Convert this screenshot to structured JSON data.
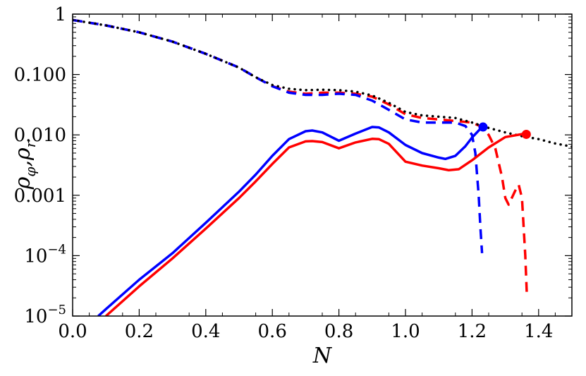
{
  "chart_data": {
    "type": "line",
    "xlabel": "N",
    "ylabel": "ρφ,ρr",
    "xlim": [
      0.0,
      1.5
    ],
    "ylim": [
      1e-05,
      1
    ],
    "yscale": "log",
    "grid": false,
    "legend": "none",
    "x_ticks": [
      0.0,
      0.2,
      0.4,
      0.6,
      0.8,
      1.0,
      1.2,
      1.4
    ],
    "x_tick_labels": [
      "0.0",
      "0.2",
      "0.4",
      "0.6",
      "0.8",
      "1.0",
      "1.2",
      "1.4"
    ],
    "y_ticks": [
      1e-05,
      0.0001,
      0.001,
      0.01,
      0.1,
      1
    ],
    "y_tick_labels": [
      {
        "base": "10",
        "exp": "−5"
      },
      {
        "base": "10",
        "exp": "−4"
      },
      {
        "base": "0.001",
        "exp": ""
      },
      {
        "base": "0.010",
        "exp": ""
      },
      {
        "base": "0.100",
        "exp": ""
      },
      {
        "base": "1",
        "exp": ""
      }
    ],
    "series": [
      {
        "color": "#ff0000",
        "style": "dashed",
        "x": [
          0.0,
          0.1,
          0.2,
          0.3,
          0.4,
          0.5,
          0.55,
          0.6,
          0.65,
          0.7,
          0.75,
          0.8,
          0.85,
          0.9,
          0.95,
          1.0,
          1.05,
          1.1,
          1.15,
          1.2,
          1.23,
          1.25,
          1.27,
          1.29,
          1.3,
          1.31,
          1.33,
          1.34,
          1.35,
          1.36,
          1.365
        ],
        "y": [
          0.8,
          0.65,
          0.5,
          0.35,
          0.22,
          0.13,
          0.09,
          0.064,
          0.052,
          0.048,
          0.05,
          0.05,
          0.048,
          0.043,
          0.032,
          0.022,
          0.019,
          0.018,
          0.017,
          0.016,
          0.0135,
          0.01,
          0.006,
          0.002,
          0.0009,
          0.0007,
          0.0012,
          0.0015,
          0.0009,
          0.0001,
          2e-05
        ]
      },
      {
        "color": "#0000ff",
        "style": "dashed",
        "x": [
          0.0,
          0.1,
          0.2,
          0.3,
          0.4,
          0.5,
          0.55,
          0.6,
          0.65,
          0.7,
          0.75,
          0.8,
          0.85,
          0.9,
          0.95,
          1.0,
          1.05,
          1.1,
          1.15,
          1.18,
          1.2,
          1.21,
          1.22,
          1.225,
          1.23
        ],
        "y": [
          0.8,
          0.65,
          0.5,
          0.35,
          0.22,
          0.13,
          0.09,
          0.064,
          0.05,
          0.046,
          0.046,
          0.048,
          0.046,
          0.037,
          0.026,
          0.018,
          0.016,
          0.016,
          0.016,
          0.014,
          0.01,
          0.005,
          0.001,
          0.0003,
          0.00011
        ]
      },
      {
        "color": "#000000",
        "style": "dotted",
        "x": [
          0.0,
          0.1,
          0.2,
          0.3,
          0.4,
          0.5,
          0.55,
          0.6,
          0.65,
          0.7,
          0.75,
          0.8,
          0.85,
          0.9,
          0.95,
          1.0,
          1.05,
          1.1,
          1.15,
          1.2,
          1.25,
          1.3,
          1.35,
          1.4,
          1.45,
          1.5
        ],
        "y": [
          0.8,
          0.65,
          0.5,
          0.35,
          0.22,
          0.13,
          0.09,
          0.067,
          0.058,
          0.055,
          0.056,
          0.055,
          0.052,
          0.045,
          0.034,
          0.024,
          0.021,
          0.02,
          0.019,
          0.016,
          0.013,
          0.011,
          0.0095,
          0.0085,
          0.0072,
          0.0064
        ]
      },
      {
        "color": "#0000ff",
        "style": "solid",
        "x": [
          0.077,
          0.1,
          0.2,
          0.3,
          0.4,
          0.5,
          0.55,
          0.6,
          0.65,
          0.7,
          0.72,
          0.75,
          0.8,
          0.85,
          0.9,
          0.92,
          0.95,
          1.0,
          1.05,
          1.1,
          1.12,
          1.15,
          1.18,
          1.2,
          1.23
        ],
        "y": [
          1e-05,
          1.3e-05,
          4e-05,
          0.00011,
          0.00035,
          0.00115,
          0.0022,
          0.0045,
          0.0085,
          0.0115,
          0.0118,
          0.011,
          0.008,
          0.0105,
          0.0135,
          0.0133,
          0.011,
          0.0068,
          0.005,
          0.0042,
          0.004,
          0.0045,
          0.0065,
          0.009,
          0.0135
        ]
      },
      {
        "color": "#ff0000",
        "style": "solid",
        "x": [
          0.1,
          0.2,
          0.3,
          0.4,
          0.5,
          0.55,
          0.6,
          0.65,
          0.7,
          0.72,
          0.75,
          0.8,
          0.85,
          0.9,
          0.92,
          0.95,
          1.0,
          1.05,
          1.1,
          1.13,
          1.16,
          1.2,
          1.25,
          1.3,
          1.35,
          1.365
        ],
        "y": [
          1e-05,
          3.1e-05,
          9e-05,
          0.00028,
          0.0009,
          0.0017,
          0.0033,
          0.0062,
          0.0078,
          0.0079,
          0.0076,
          0.006,
          0.0075,
          0.0086,
          0.0085,
          0.0071,
          0.0036,
          0.0031,
          0.0028,
          0.0026,
          0.0027,
          0.0038,
          0.0062,
          0.0092,
          0.0103,
          0.0102
        ]
      }
    ],
    "markers": [
      {
        "x": 1.233,
        "y": 0.0135,
        "color": "#0000ff"
      },
      {
        "x": 1.363,
        "y": 0.0102,
        "color": "#ff0000"
      }
    ]
  }
}
